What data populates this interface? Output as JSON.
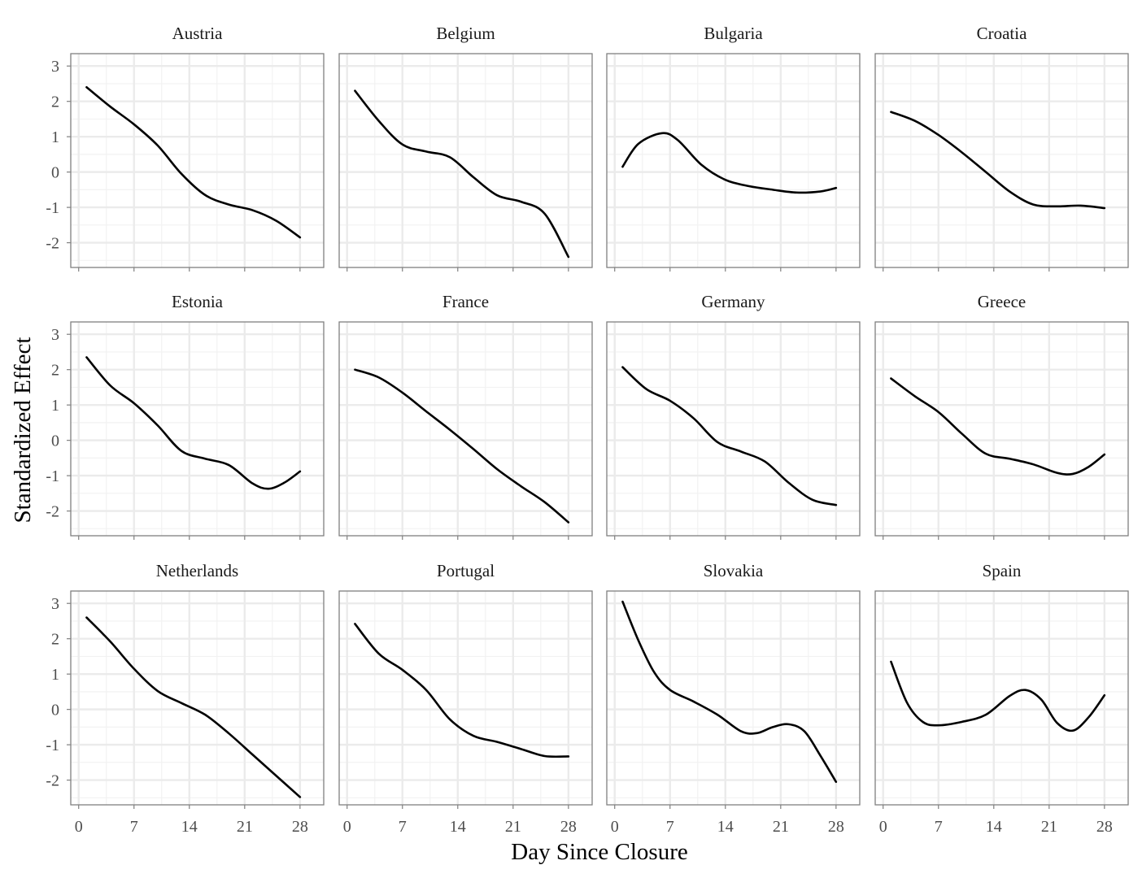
{
  "chart_data": {
    "type": "line",
    "layout": "facet-grid 3 rows x 4 columns",
    "xlabel": "Day Since Closure",
    "ylabel": "Standardized Effect",
    "xlim": [
      -1,
      31
    ],
    "ylim": [
      -2.7,
      3.35
    ],
    "x_ticks": [
      0,
      7,
      14,
      21,
      28
    ],
    "y_ticks": [
      -2,
      -1,
      0,
      1,
      2,
      3
    ],
    "grid": true,
    "line_color": "#000000",
    "panels": [
      {
        "name": "Austria",
        "x": [
          1,
          4,
          7,
          10,
          13,
          16,
          19,
          22,
          25,
          28
        ],
        "y": [
          2.4,
          1.85,
          1.35,
          0.75,
          -0.05,
          -0.65,
          -0.92,
          -1.08,
          -1.38,
          -1.85
        ]
      },
      {
        "name": "Belgium",
        "x": [
          1,
          4,
          7,
          10,
          13,
          16,
          19,
          22,
          25,
          28
        ],
        "y": [
          2.3,
          1.45,
          0.78,
          0.58,
          0.42,
          -0.15,
          -0.66,
          -0.84,
          -1.18,
          -2.4
        ]
      },
      {
        "name": "Bulgaria",
        "x": [
          1,
          3,
          6,
          8,
          11,
          14,
          17,
          20,
          23,
          26,
          28
        ],
        "y": [
          0.15,
          0.8,
          1.1,
          0.9,
          0.2,
          -0.22,
          -0.4,
          -0.5,
          -0.58,
          -0.55,
          -0.45
        ]
      },
      {
        "name": "Croatia",
        "x": [
          1,
          4,
          7,
          10,
          13,
          16,
          19,
          22,
          25,
          28
        ],
        "y": [
          1.7,
          1.45,
          1.05,
          0.55,
          0.0,
          -0.55,
          -0.92,
          -0.97,
          -0.95,
          -1.02
        ]
      },
      {
        "name": "Estonia",
        "x": [
          1,
          4,
          7,
          10,
          13,
          16,
          19,
          22,
          24,
          26,
          28
        ],
        "y": [
          2.35,
          1.55,
          1.05,
          0.42,
          -0.3,
          -0.52,
          -0.7,
          -1.22,
          -1.37,
          -1.2,
          -0.88
        ]
      },
      {
        "name": "France",
        "x": [
          1,
          4,
          7,
          10,
          13,
          16,
          19,
          22,
          25,
          28
        ],
        "y": [
          2.0,
          1.78,
          1.35,
          0.82,
          0.3,
          -0.25,
          -0.82,
          -1.3,
          -1.75,
          -2.32
        ]
      },
      {
        "name": "Germany",
        "x": [
          1,
          4,
          7,
          10,
          13,
          16,
          19,
          22,
          25,
          28
        ],
        "y": [
          2.07,
          1.45,
          1.12,
          0.62,
          -0.05,
          -0.32,
          -0.6,
          -1.2,
          -1.68,
          -1.83
        ]
      },
      {
        "name": "Greece",
        "x": [
          1,
          4,
          7,
          10,
          13,
          16,
          19,
          22,
          24,
          26,
          28
        ],
        "y": [
          1.75,
          1.25,
          0.8,
          0.18,
          -0.38,
          -0.52,
          -0.68,
          -0.92,
          -0.95,
          -0.75,
          -0.4
        ]
      },
      {
        "name": "Netherlands",
        "x": [
          1,
          4,
          7,
          10,
          13,
          16,
          19,
          22,
          25,
          28
        ],
        "y": [
          2.6,
          1.92,
          1.15,
          0.52,
          0.18,
          -0.15,
          -0.68,
          -1.28,
          -1.88,
          -2.48
        ]
      },
      {
        "name": "Portugal",
        "x": [
          1,
          4,
          7,
          10,
          13,
          16,
          19,
          22,
          25,
          28
        ],
        "y": [
          2.42,
          1.58,
          1.12,
          0.55,
          -0.28,
          -0.75,
          -0.92,
          -1.12,
          -1.32,
          -1.33
        ]
      },
      {
        "name": "Slovakia",
        "x": [
          1,
          3,
          5,
          7,
          10,
          13,
          16,
          18,
          20,
          22,
          24,
          26,
          28
        ],
        "y": [
          3.05,
          1.95,
          1.05,
          0.55,
          0.22,
          -0.15,
          -0.62,
          -0.67,
          -0.5,
          -0.42,
          -0.62,
          -1.3,
          -2.05
        ]
      },
      {
        "name": "Spain",
        "x": [
          1,
          3,
          5,
          7,
          10,
          13,
          16,
          18,
          20,
          22,
          24,
          26,
          28
        ],
        "y": [
          1.35,
          0.2,
          -0.35,
          -0.45,
          -0.35,
          -0.15,
          0.38,
          0.55,
          0.28,
          -0.38,
          -0.6,
          -0.22,
          0.4
        ]
      }
    ]
  }
}
